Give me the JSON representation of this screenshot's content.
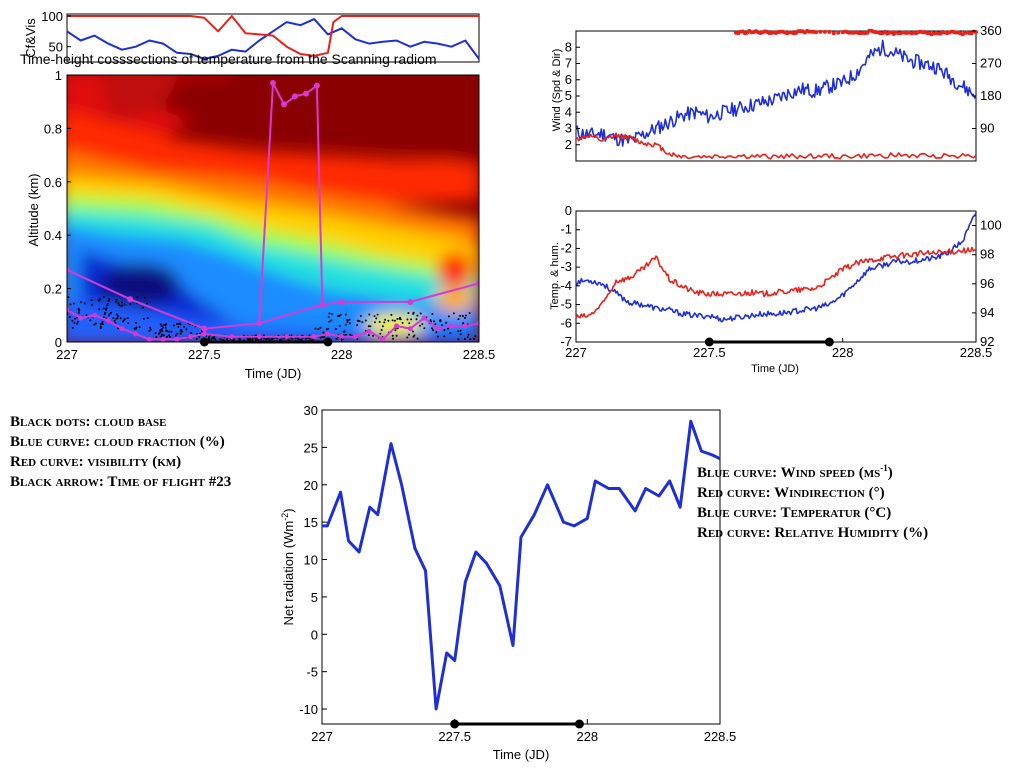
{
  "overlay_title": "Time-height cosssections of temperature from the Scanning radiom",
  "legend_left": [
    "Black dots: cloud base",
    "Blue curve: cloud fraction (%)",
    "Red curve: visibility (km)",
    "Black arrow: Time of flight #23"
  ],
  "legend_right": [
    {
      "text": "Blue curve: Wind speed (ms",
      "sup": "-1",
      "after": ")"
    },
    {
      "text": "Red curve: Windirection (°)",
      "sup": "",
      "after": ""
    },
    {
      "text": "Blue curve: Temperatur (°C)",
      "sup": "",
      "after": ""
    },
    {
      "text": "Red curve: Relative Humidity (%)",
      "sup": "",
      "after": ""
    }
  ],
  "colors": {
    "blue": "#1f2fd6",
    "red": "#e8221a",
    "magenta": "#d63ad6",
    "black": "#000000"
  },
  "chart_data": [
    {
      "type": "line",
      "id": "cfvis",
      "ylabel": "Cf&Vis",
      "yticks": [
        50,
        100
      ],
      "ylim": [
        25,
        100
      ],
      "xlim": [
        227,
        228.5
      ],
      "series": [
        {
          "color": "blue",
          "x": [
            227.0,
            227.05,
            227.1,
            227.15,
            227.2,
            227.25,
            227.3,
            227.35,
            227.4,
            227.45,
            227.5,
            227.55,
            227.6,
            227.65,
            227.7,
            227.75,
            227.8,
            227.85,
            227.9,
            227.95,
            228.0,
            228.05,
            228.1,
            228.15,
            228.2,
            228.25,
            228.3,
            228.35,
            228.4,
            228.45,
            228.5
          ],
          "y": [
            75,
            60,
            68,
            55,
            45,
            50,
            60,
            55,
            40,
            38,
            30,
            35,
            45,
            42,
            60,
            75,
            90,
            85,
            95,
            70,
            80,
            62,
            55,
            58,
            60,
            50,
            58,
            55,
            50,
            60,
            30
          ]
        },
        {
          "color": "red",
          "x": [
            227.0,
            227.45,
            227.5,
            227.55,
            227.6,
            227.65,
            227.7,
            227.75,
            227.8,
            227.85,
            227.9,
            227.95,
            227.97,
            228.0,
            228.5
          ],
          "y": [
            100,
            100,
            97,
            75,
            100,
            72,
            70,
            68,
            50,
            38,
            35,
            40,
            90,
            100,
            100
          ]
        }
      ]
    },
    {
      "type": "heatmap",
      "id": "radiometer",
      "ylabel": "Altitude (km)",
      "xlabel": "Time (JD)",
      "xlim": [
        227,
        228.5
      ],
      "ylim": [
        0,
        1
      ],
      "xticks": [
        227,
        227.5,
        228,
        228.5
      ],
      "yticks": [
        0,
        0.2,
        0.4,
        0.6,
        0.8,
        1
      ],
      "ytick_labels": [
        "0",
        "0.2",
        "0.4",
        "0.6",
        "0.8",
        "1"
      ],
      "overlay_magenta": {
        "x": [
          227.0,
          227.23,
          227.5,
          227.7,
          227.93,
          228.0,
          228.25,
          228.5
        ],
        "y": [
          0.27,
          0.16,
          0.05,
          0.07,
          0.14,
          0.15,
          0.15,
          0.22
        ]
      },
      "overlay_magenta_spike": {
        "x": [
          227.7,
          227.75,
          227.79,
          227.83,
          227.87,
          227.91,
          227.93
        ],
        "y": [
          0.07,
          0.97,
          0.89,
          0.92,
          0.93,
          0.96,
          0.14
        ]
      },
      "overlay_magenta_low": {
        "x": [
          227.0,
          227.05,
          227.1,
          227.15,
          227.2,
          227.25,
          227.3,
          227.35,
          227.4,
          227.45,
          227.5,
          227.6,
          227.7,
          227.8,
          227.9,
          227.95,
          228.0,
          228.05,
          228.1,
          228.15,
          228.2,
          228.25,
          228.3,
          228.35,
          228.4,
          228.45,
          228.5
        ],
        "y": [
          0.12,
          0.09,
          0.1,
          0.08,
          0.05,
          0.03,
          0.01,
          0.01,
          0.01,
          0.02,
          0.03,
          0.02,
          0.02,
          0.02,
          0.02,
          0.03,
          0.02,
          0.02,
          0.04,
          0.01,
          0.06,
          0.05,
          0.09,
          0.05,
          0.06,
          0.06,
          0.07
        ]
      },
      "flight": {
        "x": [
          227.5,
          227.95
        ]
      }
    },
    {
      "type": "line",
      "id": "wind",
      "ylabel": "Wind (Spd & Dir)",
      "xlim": [
        227,
        228.5
      ],
      "ylim": [
        1,
        9
      ],
      "yticks": [
        2,
        3,
        4,
        5,
        6,
        7,
        8
      ],
      "y2lim": [
        0,
        360
      ],
      "y2ticks": [
        90,
        180,
        270,
        360
      ],
      "series": [
        {
          "color": "blue",
          "axis": "left",
          "x": [
            227.0,
            227.05,
            227.1,
            227.15,
            227.2,
            227.25,
            227.3,
            227.35,
            227.4,
            227.45,
            227.5,
            227.55,
            227.6,
            227.65,
            227.7,
            227.75,
            227.8,
            227.85,
            227.9,
            227.95,
            228.0,
            228.05,
            228.1,
            228.15,
            228.2,
            228.25,
            228.3,
            228.35,
            228.4,
            228.45,
            228.5
          ],
          "y": [
            2.8,
            2.6,
            2.7,
            2.4,
            2.2,
            2.6,
            3.0,
            3.4,
            3.8,
            4.0,
            3.7,
            4.0,
            4.2,
            4.4,
            4.6,
            4.8,
            5.2,
            5.4,
            5.3,
            5.6,
            5.8,
            6.4,
            7.4,
            8.0,
            7.6,
            7.2,
            7.0,
            6.8,
            6.2,
            5.6,
            5.0
          ]
        },
        {
          "color": "red",
          "axis": "right",
          "x": [
            227.0,
            227.05,
            227.1,
            227.15,
            227.2,
            227.25,
            227.3,
            227.35,
            227.4,
            227.5,
            227.6,
            227.7,
            227.8,
            227.9,
            228.0,
            228.1,
            228.2,
            228.3,
            228.4,
            228.5
          ],
          "y": [
            60,
            70,
            55,
            70,
            65,
            50,
            45,
            20,
            12,
            12,
            14,
            12,
            13,
            14,
            12,
            14,
            16,
            14,
            15,
            15
          ]
        },
        {
          "color": "red",
          "axis": "right",
          "scatter": true,
          "x": [
            227.6,
            227.65,
            227.7,
            227.75,
            227.8,
            227.85,
            227.9,
            228.0,
            228.05,
            228.1,
            228.15,
            228.2,
            228.25,
            228.3,
            228.35,
            228.4,
            228.45,
            228.5
          ],
          "y": [
            355,
            358,
            356,
            357,
            355,
            358,
            356,
            357,
            355,
            358,
            356,
            354,
            357,
            355,
            353,
            356,
            352,
            357
          ]
        }
      ]
    },
    {
      "type": "line",
      "id": "temphum",
      "ylabel": "Temp. & hum.",
      "xlabel": "Time (JD)",
      "xlim": [
        227,
        228.5
      ],
      "ylim": [
        -7,
        0
      ],
      "yticks": [
        0,
        -1,
        -2,
        -3,
        -4,
        -5,
        -6,
        -7
      ],
      "y2lim": [
        92,
        101
      ],
      "y2ticks": [
        92,
        94,
        96,
        98,
        100
      ],
      "xticks": [
        227,
        227.5,
        228,
        228.5
      ],
      "series": [
        {
          "color": "blue",
          "axis": "left",
          "x": [
            227.0,
            227.05,
            227.1,
            227.15,
            227.2,
            227.25,
            227.3,
            227.35,
            227.4,
            227.45,
            227.5,
            227.55,
            227.6,
            227.65,
            227.7,
            227.75,
            227.8,
            227.85,
            227.9,
            227.95,
            228.0,
            228.05,
            228.1,
            228.15,
            228.2,
            228.25,
            228.3,
            228.35,
            228.4,
            228.45,
            228.5
          ],
          "y": [
            -3.8,
            -3.7,
            -3.9,
            -4.4,
            -4.9,
            -5.0,
            -5.2,
            -5.3,
            -5.5,
            -5.6,
            -5.6,
            -5.8,
            -5.7,
            -5.6,
            -5.5,
            -5.5,
            -5.4,
            -5.3,
            -5.2,
            -5.0,
            -4.5,
            -3.8,
            -3.1,
            -2.9,
            -2.7,
            -2.7,
            -2.6,
            -2.5,
            -2.2,
            -1.6,
            -0.1
          ]
        },
        {
          "color": "red",
          "axis": "right",
          "x": [
            227.0,
            227.05,
            227.1,
            227.15,
            227.2,
            227.25,
            227.3,
            227.35,
            227.4,
            227.45,
            227.5,
            227.55,
            227.6,
            227.65,
            227.7,
            227.75,
            227.8,
            227.85,
            227.9,
            227.95,
            228.0,
            228.05,
            228.1,
            228.15,
            228.2,
            228.25,
            228.3,
            228.35,
            228.4,
            228.45,
            228.5
          ],
          "y": [
            93.7,
            93.8,
            94.6,
            96.2,
            96.4,
            97.0,
            97.8,
            96.3,
            95.8,
            95.4,
            95.3,
            95.3,
            95.3,
            95.4,
            95.3,
            95.4,
            95.5,
            95.6,
            95.7,
            96.3,
            97.0,
            97.4,
            97.6,
            97.8,
            97.9,
            98.0,
            98.1,
            98.1,
            98.2,
            98.3,
            98.3
          ]
        }
      ],
      "flight": {
        "x": [
          227.5,
          227.95
        ]
      }
    },
    {
      "type": "line",
      "id": "netrad",
      "ylabel": "Net radiation (Wm-2)",
      "xlabel": "Time (JD)",
      "xlim": [
        227,
        228.5
      ],
      "ylim": [
        -12,
        30
      ],
      "yticks": [
        -10,
        -5,
        0,
        5,
        10,
        15,
        20,
        25,
        30
      ],
      "xticks": [
        227,
        227.5,
        228,
        228.5
      ],
      "series": [
        {
          "color": "blue",
          "x": [
            227.0,
            227.02,
            227.07,
            227.1,
            227.14,
            227.18,
            227.21,
            227.26,
            227.3,
            227.35,
            227.39,
            227.43,
            227.47,
            227.5,
            227.54,
            227.58,
            227.62,
            227.67,
            227.72,
            227.75,
            227.8,
            227.85,
            227.91,
            227.95,
            228.0,
            228.03,
            228.08,
            228.12,
            228.18,
            228.22,
            228.27,
            228.31,
            228.35,
            228.39,
            228.43,
            228.47,
            228.5
          ],
          "y": [
            14.5,
            14.5,
            19,
            12.5,
            11,
            17,
            16,
            25.5,
            20,
            11.5,
            8.5,
            -10,
            -2.5,
            -3.5,
            7,
            11,
            9.5,
            6.5,
            -1.5,
            13,
            16,
            20,
            15,
            14.5,
            15.5,
            20.5,
            19.5,
            19.5,
            16.5,
            19.5,
            18.5,
            20.5,
            17,
            28.5,
            24.5,
            24,
            23.5
          ]
        }
      ],
      "flight": {
        "x": [
          227.5,
          227.97
        ]
      }
    }
  ]
}
